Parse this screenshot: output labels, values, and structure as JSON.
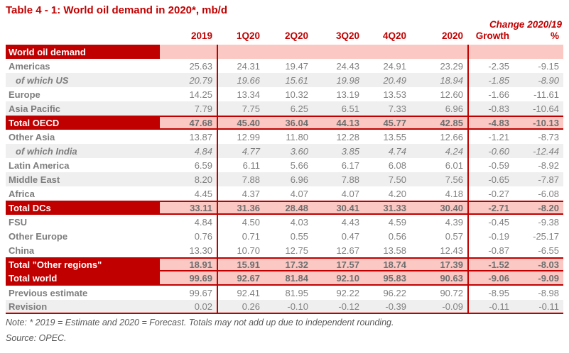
{
  "title": "Table 4 - 1: World oil demand in 2020*, mb/d",
  "change_header": "Change 2020/19",
  "columns": [
    "2019",
    "1Q20",
    "2Q20",
    "3Q20",
    "4Q20",
    "2020",
    "Growth",
    "%"
  ],
  "rows": [
    {
      "label": "World oil demand",
      "type": "band",
      "italic": false,
      "shade": false,
      "values": [
        "",
        "",
        "",
        "",
        "",
        "",
        "",
        ""
      ]
    },
    {
      "label": "Americas",
      "type": "data",
      "italic": false,
      "shade": false,
      "values": [
        "25.63",
        "24.31",
        "19.47",
        "24.43",
        "24.91",
        "23.29",
        "-2.35",
        "-9.15"
      ]
    },
    {
      "label": "of which US",
      "type": "data",
      "italic": true,
      "shade": true,
      "values": [
        "20.79",
        "19.66",
        "15.61",
        "19.98",
        "20.49",
        "18.94",
        "-1.85",
        "-8.90"
      ]
    },
    {
      "label": "Europe",
      "type": "data",
      "italic": false,
      "shade": false,
      "values": [
        "14.25",
        "13.34",
        "10.32",
        "13.19",
        "13.53",
        "12.60",
        "-1.66",
        "-11.61"
      ]
    },
    {
      "label": "Asia Pacific",
      "type": "data",
      "italic": false,
      "shade": true,
      "values": [
        "7.79",
        "7.75",
        "6.25",
        "6.51",
        "7.33",
        "6.96",
        "-0.83",
        "-10.64"
      ]
    },
    {
      "label": "Total OECD",
      "type": "total",
      "italic": false,
      "shade": false,
      "values": [
        "47.68",
        "45.40",
        "36.04",
        "44.13",
        "45.77",
        "42.85",
        "-4.83",
        "-10.13"
      ]
    },
    {
      "label": "Other Asia",
      "type": "data",
      "italic": false,
      "shade": false,
      "values": [
        "13.87",
        "12.99",
        "11.80",
        "12.28",
        "13.55",
        "12.66",
        "-1.21",
        "-8.73"
      ]
    },
    {
      "label": "of which India",
      "type": "data",
      "italic": true,
      "shade": true,
      "values": [
        "4.84",
        "4.77",
        "3.60",
        "3.85",
        "4.74",
        "4.24",
        "-0.60",
        "-12.44"
      ]
    },
    {
      "label": "Latin America",
      "type": "data",
      "italic": false,
      "shade": false,
      "values": [
        "6.59",
        "6.11",
        "5.66",
        "6.17",
        "6.08",
        "6.01",
        "-0.59",
        "-8.92"
      ]
    },
    {
      "label": "Middle East",
      "type": "data",
      "italic": false,
      "shade": true,
      "values": [
        "8.20",
        "7.88",
        "6.96",
        "7.88",
        "7.50",
        "7.56",
        "-0.65",
        "-7.87"
      ]
    },
    {
      "label": "Africa",
      "type": "data",
      "italic": false,
      "shade": false,
      "values": [
        "4.45",
        "4.37",
        "4.07",
        "4.07",
        "4.20",
        "4.18",
        "-0.27",
        "-6.08"
      ]
    },
    {
      "label": "Total DCs",
      "type": "total",
      "italic": false,
      "shade": false,
      "values": [
        "33.11",
        "31.36",
        "28.48",
        "30.41",
        "31.33",
        "30.40",
        "-2.71",
        "-8.20"
      ]
    },
    {
      "label": "FSU",
      "type": "data",
      "italic": false,
      "shade": false,
      "values": [
        "4.84",
        "4.50",
        "4.03",
        "4.43",
        "4.59",
        "4.39",
        "-0.45",
        "-9.38"
      ]
    },
    {
      "label": "Other Europe",
      "type": "data",
      "italic": false,
      "shade": false,
      "values": [
        "0.76",
        "0.71",
        "0.55",
        "0.47",
        "0.56",
        "0.57",
        "-0.19",
        "-25.17"
      ]
    },
    {
      "label": "China",
      "type": "data",
      "italic": false,
      "shade": false,
      "values": [
        "13.30",
        "10.70",
        "12.75",
        "12.67",
        "13.58",
        "12.43",
        "-0.87",
        "-6.55"
      ]
    },
    {
      "label": "Total \"Other regions\"",
      "type": "total",
      "italic": false,
      "shade": false,
      "values": [
        "18.91",
        "15.91",
        "17.32",
        "17.57",
        "18.74",
        "17.39",
        "-1.52",
        "-8.03"
      ]
    },
    {
      "label": "Total world",
      "type": "total",
      "italic": false,
      "shade": false,
      "values": [
        "99.69",
        "92.67",
        "81.84",
        "92.10",
        "95.83",
        "90.63",
        "-9.06",
        "-9.09"
      ]
    },
    {
      "label": "Previous estimate",
      "type": "data",
      "italic": false,
      "shade": false,
      "values": [
        "99.67",
        "92.41",
        "81.95",
        "92.22",
        "96.22",
        "90.72",
        "-8.95",
        "-8.98"
      ]
    },
    {
      "label": "Revision",
      "type": "data",
      "italic": false,
      "shade": true,
      "values": [
        "0.02",
        "0.26",
        "-0.10",
        "-0.12",
        "-0.39",
        "-0.09",
        "-0.11",
        "-0.11"
      ]
    }
  ],
  "notes": {
    "note": "Note: * 2019 = Estimate and 2020 = Forecast. Totals may not add up due to independent rounding.",
    "source": "Source: OPEC."
  },
  "colors": {
    "accent_dark_red": "#C00000",
    "total_row_pink": "#FBC8C3",
    "stripe_gray": "#EFEFEF",
    "value_text_gray": "#808080"
  }
}
